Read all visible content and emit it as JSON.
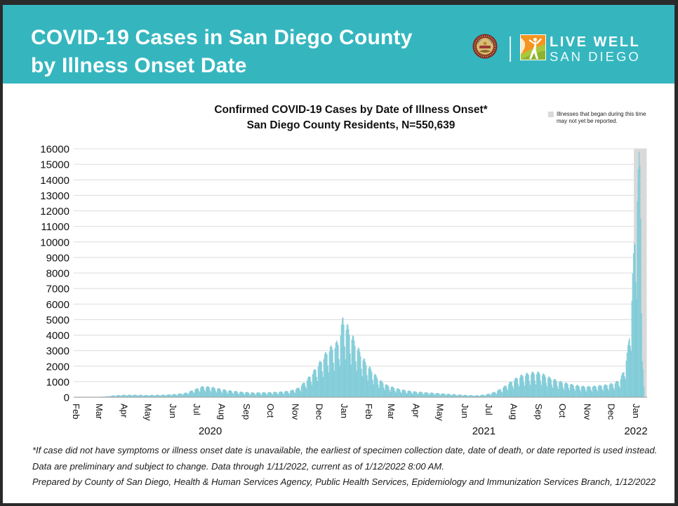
{
  "header": {
    "title_line1": "COVID-19 Cases in San Diego County",
    "title_line2": "by Illness Onset Date",
    "brand": {
      "live_well_line1": "LIVE WELL",
      "live_well_line2": "SAN DIEGO"
    },
    "colors": {
      "header_bg": "#35b6bf"
    }
  },
  "chart_data": {
    "type": "bar",
    "title": "Confirmed COVID-19 Cases by Date of Illness Onset*",
    "subtitle": "San Diego County Residents, N=550,639",
    "legend_label": "Illnesses that began during this time may not yet be reported.",
    "xlabel": "",
    "ylabel": "",
    "ylim": [
      0,
      16000
    ],
    "y_tick_step": 1000,
    "grid": "horizontal",
    "legend_position": "top-right",
    "x_ticks": [
      {
        "label": "Feb",
        "date": "2020-02-01"
      },
      {
        "label": "Mar",
        "date": "2020-03-01"
      },
      {
        "label": "Apr",
        "date": "2020-04-01"
      },
      {
        "label": "May",
        "date": "2020-05-01"
      },
      {
        "label": "Jun",
        "date": "2020-06-01"
      },
      {
        "label": "Jul",
        "date": "2020-07-01"
      },
      {
        "label": "Aug",
        "date": "2020-08-01"
      },
      {
        "label": "Sep",
        "date": "2020-09-01"
      },
      {
        "label": "Oct",
        "date": "2020-10-01"
      },
      {
        "label": "Nov",
        "date": "2020-11-01"
      },
      {
        "label": "Dec",
        "date": "2020-12-01"
      },
      {
        "label": "Jan",
        "date": "2021-01-01"
      },
      {
        "label": "Feb",
        "date": "2021-02-01"
      },
      {
        "label": "Mar",
        "date": "2021-03-01"
      },
      {
        "label": "Apr",
        "date": "2021-04-01"
      },
      {
        "label": "May",
        "date": "2021-05-01"
      },
      {
        "label": "Jun",
        "date": "2021-06-01"
      },
      {
        "label": "Jul",
        "date": "2021-07-01"
      },
      {
        "label": "Aug",
        "date": "2021-08-01"
      },
      {
        "label": "Sep",
        "date": "2021-09-01"
      },
      {
        "label": "Oct",
        "date": "2021-10-01"
      },
      {
        "label": "Nov",
        "date": "2021-11-01"
      },
      {
        "label": "Dec",
        "date": "2021-12-01"
      },
      {
        "label": "Jan",
        "date": "2022-01-01"
      }
    ],
    "year_labels": [
      {
        "label": "2020",
        "anchor_date": "2020-07-18"
      },
      {
        "label": "2021",
        "anchor_date": "2021-06-25"
      },
      {
        "label": "2022",
        "anchor_date": "2022-01-01"
      }
    ],
    "series_daily_cases_anchors": [
      [
        "2020-02-01",
        0
      ],
      [
        "2020-02-20",
        3
      ],
      [
        "2020-03-01",
        12
      ],
      [
        "2020-03-10",
        45
      ],
      [
        "2020-03-20",
        100
      ],
      [
        "2020-04-01",
        135
      ],
      [
        "2020-04-15",
        140
      ],
      [
        "2020-05-01",
        120
      ],
      [
        "2020-05-20",
        140
      ],
      [
        "2020-06-05",
        180
      ],
      [
        "2020-06-18",
        260
      ],
      [
        "2020-06-28",
        450
      ],
      [
        "2020-07-08",
        640
      ],
      [
        "2020-07-18",
        620
      ],
      [
        "2020-07-28",
        520
      ],
      [
        "2020-08-10",
        400
      ],
      [
        "2020-08-25",
        320
      ],
      [
        "2020-09-10",
        270
      ],
      [
        "2020-09-25",
        285
      ],
      [
        "2020-10-10",
        310
      ],
      [
        "2020-10-25",
        370
      ],
      [
        "2020-11-05",
        550
      ],
      [
        "2020-11-15",
        1000
      ],
      [
        "2020-11-25",
        1600
      ],
      [
        "2020-12-05",
        2300
      ],
      [
        "2020-12-13",
        2900
      ],
      [
        "2020-12-20",
        3100
      ],
      [
        "2020-12-26",
        3400
      ],
      [
        "2020-12-31",
        4800
      ],
      [
        "2021-01-03",
        4400
      ],
      [
        "2021-01-07",
        4100
      ],
      [
        "2021-01-12",
        3600
      ],
      [
        "2021-01-20",
        2800
      ],
      [
        "2021-01-28",
        2100
      ],
      [
        "2021-02-05",
        1600
      ],
      [
        "2021-02-14",
        1050
      ],
      [
        "2021-02-24",
        720
      ],
      [
        "2021-03-08",
        520
      ],
      [
        "2021-03-20",
        400
      ],
      [
        "2021-04-01",
        330
      ],
      [
        "2021-04-15",
        280
      ],
      [
        "2021-05-01",
        230
      ],
      [
        "2021-05-15",
        180
      ],
      [
        "2021-06-01",
        130
      ],
      [
        "2021-06-15",
        100
      ],
      [
        "2021-06-28",
        160
      ],
      [
        "2021-07-08",
        300
      ],
      [
        "2021-07-18",
        550
      ],
      [
        "2021-07-28",
        900
      ],
      [
        "2021-08-08",
        1250
      ],
      [
        "2021-08-18",
        1400
      ],
      [
        "2021-08-28",
        1500
      ],
      [
        "2021-09-04",
        1450
      ],
      [
        "2021-09-14",
        1200
      ],
      [
        "2021-09-24",
        1000
      ],
      [
        "2021-10-05",
        850
      ],
      [
        "2021-10-15",
        740
      ],
      [
        "2021-10-25",
        660
      ],
      [
        "2021-11-05",
        640
      ],
      [
        "2021-11-15",
        690
      ],
      [
        "2021-11-25",
        740
      ],
      [
        "2021-12-05",
        850
      ],
      [
        "2021-12-12",
        1050
      ],
      [
        "2021-12-17",
        1600
      ],
      [
        "2021-12-21",
        2600
      ],
      [
        "2021-12-24",
        3800
      ],
      [
        "2021-12-27",
        6200
      ],
      [
        "2021-12-30",
        9300
      ],
      [
        "2022-01-01",
        10300
      ],
      [
        "2022-01-03",
        12600
      ],
      [
        "2022-01-05",
        14100
      ],
      [
        "2022-01-06",
        13900
      ],
      [
        "2022-01-07",
        11500
      ],
      [
        "2022-01-08",
        7500
      ],
      [
        "2022-01-09",
        4200
      ],
      [
        "2022-01-10",
        1800
      ],
      [
        "2022-01-11",
        600
      ]
    ],
    "weekday_reporting_factors": [
      0.55,
      1.0,
      1.1,
      1.12,
      1.07,
      1.0,
      0.72
    ],
    "data_start": "2020-02-01",
    "data_end": "2022-01-11",
    "unreported_window": {
      "start": "2021-12-30",
      "end": "2022-01-14"
    },
    "colors": {
      "bar": "#8fd3de",
      "bar_edge": "#59b8c8",
      "unreported_band": "#d9d9d9",
      "gridline": "#dcdcdc",
      "axis_line": "#a6a6a6",
      "tick_text": "#111111"
    }
  },
  "footnotes": [
    "*If case did not have symptoms or illness onset date is unavailable, the earliest of specimen collection date, date of death, or date reported is used instead.",
    "Data are preliminary and subject to change. Data through 1/11/2022, current as of 1/12/2022 8:00 AM.",
    "Prepared by County of San Diego, Health & Human Services Agency, Public Health Services, Epidemiology and Immunization Services Branch, 1/12/2022"
  ]
}
